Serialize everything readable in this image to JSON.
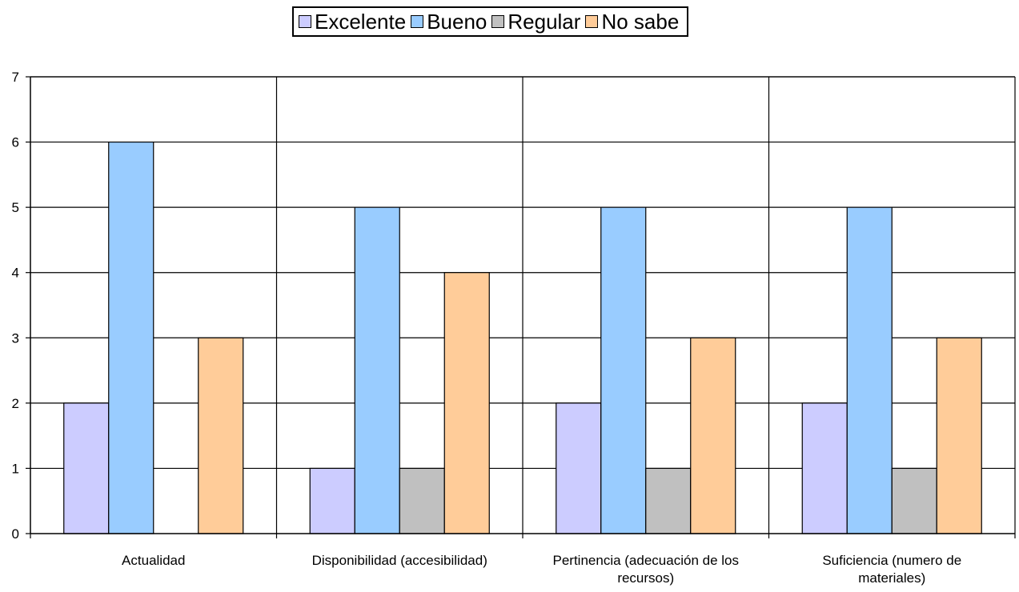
{
  "chart_data": {
    "type": "bar",
    "categories": [
      "Actualidad",
      "Disponibilidad (accesibilidad)",
      "Pertinencia (adecuación de los recursos)",
      "Suficiencia (numero de materiales)"
    ],
    "category_lines": [
      [
        "Actualidad"
      ],
      [
        "Disponibilidad (accesibilidad)"
      ],
      [
        "Pertinencia (adecuación de los",
        "recursos)"
      ],
      [
        "Suficiencia (numero de",
        "materiales)"
      ]
    ],
    "series": [
      {
        "name": "Excelente",
        "color": "#CCCCFF",
        "values": [
          2,
          1,
          2,
          2
        ]
      },
      {
        "name": "Bueno",
        "color": "#99CCFF",
        "values": [
          6,
          5,
          5,
          5
        ]
      },
      {
        "name": "Regular",
        "color": "#C0C0C0",
        "values": [
          0,
          1,
          1,
          1
        ]
      },
      {
        "name": "No sabe",
        "color": "#FFCC99",
        "values": [
          3,
          4,
          3,
          3
        ]
      }
    ],
    "y_ticks": [
      "0",
      "1",
      "2",
      "3",
      "4",
      "5",
      "6",
      "7"
    ],
    "ylim": [
      0,
      7
    ],
    "grid": true,
    "legend_position": "top-center"
  }
}
